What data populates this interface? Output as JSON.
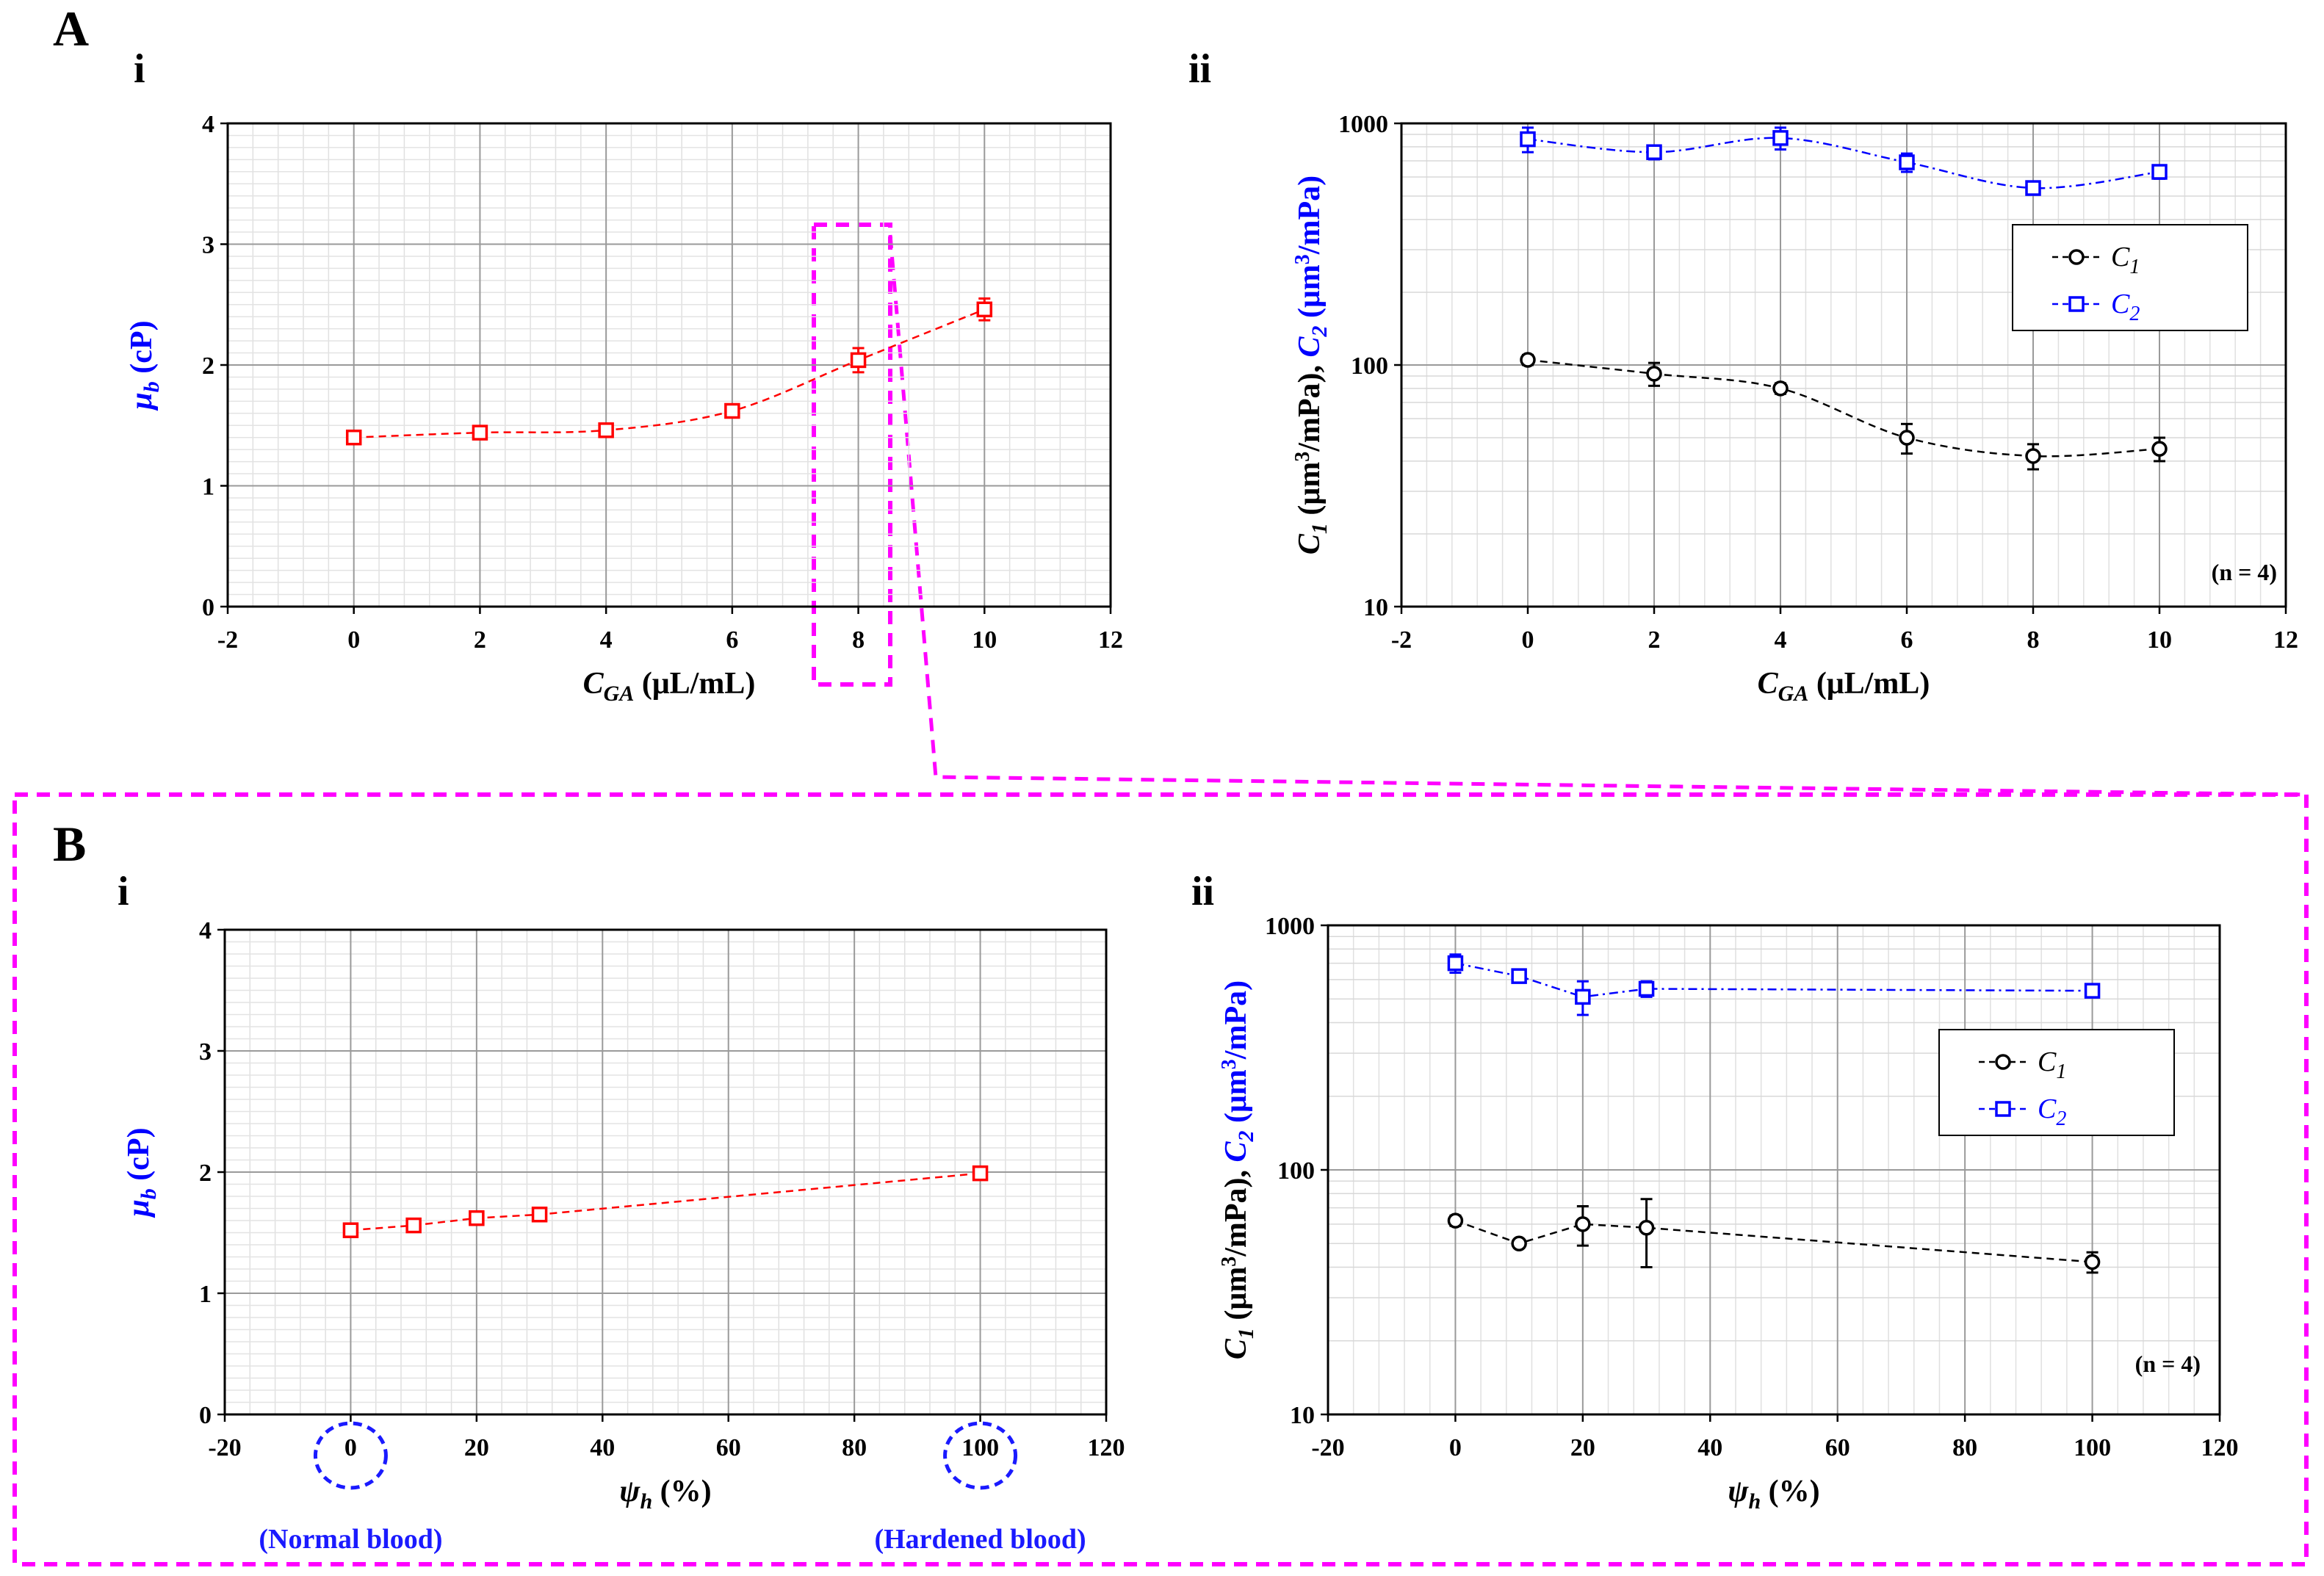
{
  "figure": {
    "panel_A": "A",
    "panel_B": "B",
    "sub_i": "i",
    "sub_ii": "ii",
    "colors": {
      "red": "#ff0000",
      "blue": "#0000ff",
      "black": "#000000",
      "magenta": "#ff00ff",
      "anno_blue": "#1a1aff"
    }
  },
  "chart_data": [
    {
      "id": "Ai",
      "type": "line",
      "xlabel_base": "C",
      "xlabel_sub": "GA",
      "xlabel_unit": " (μL/mL)",
      "ylabel_base": "μ",
      "ylabel_sub": "b",
      "ylabel_unit": " (cP)",
      "xlim": [
        -2,
        12
      ],
      "xticks": [
        "-2",
        "0",
        "2",
        "4",
        "6",
        "8",
        "10",
        "12"
      ],
      "ylim": [
        0,
        4
      ],
      "yticks": [
        "0",
        "1",
        "2",
        "3",
        "4"
      ],
      "yscale": "linear",
      "series": [
        {
          "name": "μb",
          "color": "#ff0000",
          "marker": "square",
          "x": [
            0,
            2,
            4,
            6,
            8,
            10
          ],
          "y": [
            1.4,
            1.44,
            1.46,
            1.62,
            2.04,
            2.46
          ],
          "err": [
            0.03,
            0.04,
            0.04,
            0.04,
            0.1,
            0.09
          ]
        }
      ]
    },
    {
      "id": "Aii",
      "type": "line",
      "xlabel_base": "C",
      "xlabel_sub": "GA",
      "xlabel_unit": " (μL/mL)",
      "xlim": [
        -2,
        12
      ],
      "xticks": [
        "-2",
        "0",
        "2",
        "4",
        "6",
        "8",
        "10",
        "12"
      ],
      "ylim": [
        10,
        1000
      ],
      "yticks": [
        "10",
        "100",
        "1000"
      ],
      "yscale": "log",
      "legend": [
        "C1",
        "C2"
      ],
      "note": "(n = 4)",
      "series": [
        {
          "name": "C1",
          "color": "#000000",
          "marker": "circle",
          "x": [
            0,
            2,
            4,
            6,
            8,
            10
          ],
          "y": [
            105,
            92,
            80,
            50,
            42,
            45
          ],
          "err": [
            5,
            10,
            4,
            7,
            5,
            5
          ]
        },
        {
          "name": "C2",
          "color": "#0000ff",
          "marker": "square",
          "x": [
            0,
            2,
            4,
            6,
            8,
            10
          ],
          "y": [
            860,
            760,
            870,
            690,
            540,
            630
          ],
          "err": [
            100,
            50,
            90,
            60,
            30,
            40
          ]
        }
      ]
    },
    {
      "id": "Bi",
      "type": "line",
      "xlabel_base": "ψ",
      "xlabel_sub": "h",
      "xlabel_unit": " (%)",
      "ylabel_base": "μ",
      "ylabel_sub": "b",
      "ylabel_unit": " (cP)",
      "xlim": [
        -20,
        120
      ],
      "xticks": [
        "-20",
        "0",
        "20",
        "40",
        "60",
        "80",
        "100",
        "120"
      ],
      "ylim": [
        0,
        4
      ],
      "yticks": [
        "0",
        "1",
        "2",
        "3",
        "4"
      ],
      "yscale": "linear",
      "annotations": [
        "(Normal blood)",
        "(Hardened blood)"
      ],
      "series": [
        {
          "name": "μb",
          "color": "#ff0000",
          "marker": "square",
          "x": [
            0,
            10,
            20,
            30,
            100
          ],
          "y": [
            1.52,
            1.56,
            1.62,
            1.65,
            1.99
          ],
          "err": [
            0.02,
            0.02,
            0.02,
            0.02,
            0.02
          ]
        }
      ]
    },
    {
      "id": "Bii",
      "type": "line",
      "xlabel_base": "ψ",
      "xlabel_sub": "h",
      "xlabel_unit": " (%)",
      "xlim": [
        -20,
        120
      ],
      "xticks": [
        "-20",
        "0",
        "20",
        "40",
        "60",
        "80",
        "100",
        "120"
      ],
      "ylim": [
        10,
        1000
      ],
      "yticks": [
        "10",
        "100",
        "1000"
      ],
      "yscale": "log",
      "legend": [
        "C1",
        "C2"
      ],
      "note": "(n = 4)",
      "series": [
        {
          "name": "C1",
          "color": "#000000",
          "marker": "circle",
          "x": [
            0,
            10,
            20,
            30,
            100
          ],
          "y": [
            62,
            50,
            60,
            58,
            42
          ],
          "err": [
            3,
            2,
            11,
            18,
            4
          ]
        },
        {
          "name": "C2",
          "color": "#0000ff",
          "marker": "square",
          "x": [
            0,
            10,
            20,
            30,
            100
          ],
          "y": [
            700,
            620,
            510,
            550,
            540
          ],
          "err": [
            60,
            30,
            80,
            40,
            20
          ]
        }
      ]
    }
  ]
}
